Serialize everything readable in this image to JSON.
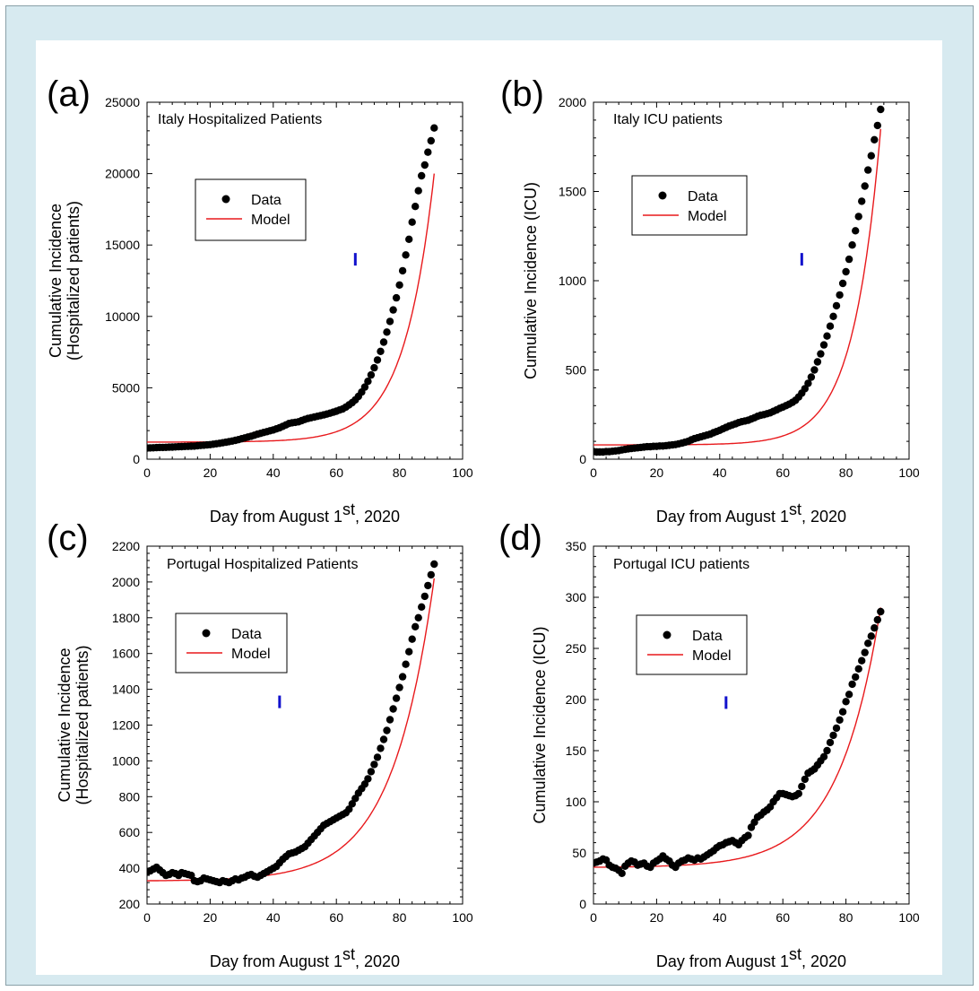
{
  "chart_data": [
    {
      "type": "scatter",
      "panel_label": "(a)",
      "title": "Italy Hospitalized Patients",
      "ylabel": [
        "Cumulative Incidence",
        "(Hospitalized patients)"
      ],
      "xlabel": {
        "text": "Day from August 1",
        "sup": "st",
        "after": ", 2020"
      },
      "xlim": [
        0,
        100
      ],
      "ylim": [
        0,
        25000
      ],
      "xticks": [
        0,
        20,
        40,
        60,
        80,
        100
      ],
      "yticks": [
        0,
        5000,
        10000,
        15000,
        20000,
        25000
      ],
      "legend": {
        "placement": "upper-left",
        "entries": [
          "Data",
          "Model"
        ]
      },
      "marker": {
        "x": 66,
        "y": 14000
      },
      "colors": {
        "data": "#000000",
        "model": "#e8191c",
        "marker": "#1111cc"
      },
      "series": [
        {
          "name": "Data",
          "kind": "points",
          "x": [
            0,
            1,
            2,
            3,
            4,
            5,
            6,
            7,
            8,
            9,
            10,
            11,
            12,
            13,
            14,
            15,
            16,
            17,
            18,
            19,
            20,
            21,
            22,
            23,
            24,
            25,
            26,
            27,
            28,
            29,
            30,
            31,
            32,
            33,
            34,
            35,
            36,
            37,
            38,
            39,
            40,
            41,
            42,
            43,
            44,
            45,
            46,
            47,
            48,
            49,
            50,
            51,
            52,
            53,
            54,
            55,
            56,
            57,
            58,
            59,
            60,
            61,
            62,
            63,
            64,
            65,
            66,
            67,
            68,
            69,
            70,
            71,
            72,
            73,
            74,
            75,
            76,
            77,
            78,
            79,
            80,
            81,
            82,
            83,
            84,
            85,
            86,
            87,
            88,
            89,
            90,
            91
          ],
          "y": [
            780,
            790,
            800,
            810,
            820,
            820,
            830,
            840,
            850,
            860,
            870,
            880,
            890,
            900,
            910,
            920,
            940,
            960,
            980,
            1000,
            1020,
            1050,
            1080,
            1110,
            1150,
            1190,
            1230,
            1270,
            1320,
            1370,
            1430,
            1490,
            1550,
            1610,
            1680,
            1750,
            1810,
            1870,
            1930,
            1990,
            2050,
            2120,
            2200,
            2300,
            2400,
            2500,
            2550,
            2580,
            2620,
            2700,
            2780,
            2850,
            2900,
            2950,
            3000,
            3050,
            3100,
            3160,
            3220,
            3290,
            3360,
            3440,
            3520,
            3650,
            3800,
            3960,
            4150,
            4400,
            4700,
            5050,
            5450,
            5900,
            6400,
            6950,
            7550,
            8200,
            8900,
            9650,
            10450,
            11300,
            12200,
            13200,
            14300,
            15400,
            16600,
            17700,
            18800,
            19850,
            20600,
            21500,
            22300,
            23200
          ]
        },
        {
          "name": "Model",
          "kind": "line",
          "x0": 0,
          "x1": 91,
          "y0": 1200,
          "y1": 20000,
          "curvature": 0.105
        }
      ]
    },
    {
      "type": "scatter",
      "panel_label": "(b)",
      "title": "Italy ICU patients",
      "ylabel": [
        "Cumulative  Incidence (ICU)"
      ],
      "xlabel": {
        "text": "Day from August 1",
        "sup": "st",
        "after": ", 2020"
      },
      "xlim": [
        0,
        100
      ],
      "ylim": [
        0,
        2000
      ],
      "xticks": [
        0,
        20,
        40,
        60,
        80,
        100
      ],
      "yticks": [
        0,
        500,
        1000,
        1500,
        2000
      ],
      "legend": {
        "placement": "upper-left",
        "entries": [
          "Data",
          "Model"
        ]
      },
      "marker": {
        "x": 66,
        "y": 1120
      },
      "colors": {
        "data": "#000000",
        "model": "#e8191c",
        "marker": "#1111cc"
      },
      "series": [
        {
          "name": "Data",
          "kind": "points",
          "x": [
            0,
            1,
            2,
            3,
            4,
            5,
            6,
            7,
            8,
            9,
            10,
            11,
            12,
            13,
            14,
            15,
            16,
            17,
            18,
            19,
            20,
            21,
            22,
            23,
            24,
            25,
            26,
            27,
            28,
            29,
            30,
            31,
            32,
            33,
            34,
            35,
            36,
            37,
            38,
            39,
            40,
            41,
            42,
            43,
            44,
            45,
            46,
            47,
            48,
            49,
            50,
            51,
            52,
            53,
            54,
            55,
            56,
            57,
            58,
            59,
            60,
            61,
            62,
            63,
            64,
            65,
            66,
            67,
            68,
            69,
            70,
            71,
            72,
            73,
            74,
            75,
            76,
            77,
            78,
            79,
            80,
            81,
            82,
            83,
            84,
            85,
            86,
            87,
            88,
            89,
            90,
            91
          ],
          "y": [
            42,
            40,
            40,
            40,
            42,
            42,
            44,
            46,
            48,
            52,
            55,
            58,
            60,
            62,
            64,
            66,
            68,
            70,
            70,
            72,
            72,
            74,
            74,
            76,
            78,
            80,
            82,
            86,
            90,
            95,
            100,
            108,
            115,
            120,
            125,
            130,
            135,
            140,
            148,
            155,
            162,
            170,
            178,
            186,
            192,
            198,
            205,
            210,
            214,
            218,
            225,
            232,
            240,
            246,
            250,
            255,
            260,
            268,
            276,
            285,
            292,
            300,
            308,
            318,
            330,
            348,
            370,
            395,
            425,
            460,
            500,
            545,
            590,
            640,
            690,
            745,
            800,
            860,
            920,
            985,
            1050,
            1120,
            1200,
            1280,
            1360,
            1445,
            1530,
            1620,
            1700,
            1790,
            1870,
            1960
          ]
        },
        {
          "name": "Model",
          "kind": "line",
          "x0": 0,
          "x1": 91,
          "y0": 80,
          "y1": 1850,
          "curvature": 0.115
        }
      ]
    },
    {
      "type": "scatter",
      "panel_label": "(c)",
      "title": "Portugal Hospitalized Patients",
      "ylabel": [
        "Cumulative Incidence",
        "(Hospitalized patients)"
      ],
      "xlabel": {
        "text": "Day from August 1",
        "sup": "st",
        "after": ", 2020"
      },
      "xlim": [
        0,
        100
      ],
      "ylim": [
        200,
        2200
      ],
      "xticks": [
        0,
        20,
        40,
        60,
        80,
        100
      ],
      "yticks": [
        200,
        400,
        600,
        800,
        1000,
        1200,
        1400,
        1600,
        1800,
        2000,
        2200
      ],
      "legend": {
        "placement": "upper-left",
        "entries": [
          "Data",
          "Model"
        ]
      },
      "marker": {
        "x": 42,
        "y": 1330
      },
      "colors": {
        "data": "#000000",
        "model": "#e8191c",
        "marker": "#1111cc"
      },
      "series": [
        {
          "name": "Data",
          "kind": "points",
          "x": [
            0,
            1,
            2,
            3,
            4,
            5,
            6,
            7,
            8,
            9,
            10,
            11,
            12,
            13,
            14,
            15,
            16,
            17,
            18,
            19,
            20,
            21,
            22,
            23,
            24,
            25,
            26,
            27,
            28,
            29,
            30,
            31,
            32,
            33,
            34,
            35,
            36,
            37,
            38,
            39,
            40,
            41,
            42,
            43,
            44,
            45,
            46,
            47,
            48,
            49,
            50,
            51,
            52,
            53,
            54,
            55,
            56,
            57,
            58,
            59,
            60,
            61,
            62,
            63,
            64,
            65,
            66,
            67,
            68,
            69,
            70,
            71,
            72,
            73,
            74,
            75,
            76,
            77,
            78,
            79,
            80,
            81,
            82,
            83,
            84,
            85,
            86,
            87,
            88,
            89,
            90,
            91
          ],
          "y": [
            380,
            385,
            395,
            405,
            390,
            375,
            360,
            365,
            375,
            370,
            360,
            375,
            370,
            365,
            360,
            330,
            325,
            330,
            345,
            340,
            335,
            330,
            325,
            320,
            330,
            325,
            320,
            330,
            340,
            335,
            345,
            350,
            360,
            365,
            355,
            350,
            360,
            370,
            380,
            390,
            400,
            410,
            430,
            450,
            465,
            480,
            485,
            490,
            500,
            510,
            520,
            540,
            560,
            580,
            600,
            620,
            640,
            650,
            660,
            670,
            680,
            690,
            700,
            710,
            730,
            760,
            790,
            820,
            845,
            870,
            900,
            940,
            980,
            1020,
            1070,
            1120,
            1170,
            1230,
            1290,
            1350,
            1410,
            1470,
            1540,
            1610,
            1680,
            1750,
            1800,
            1860,
            1920,
            1980,
            2040,
            2100
          ]
        },
        {
          "name": "Model",
          "kind": "line",
          "x0": 0,
          "x1": 91,
          "y0": 330,
          "y1": 2020,
          "curvature": 0.075
        }
      ]
    },
    {
      "type": "scatter",
      "panel_label": "(d)",
      "title": "Portugal ICU patients",
      "ylabel": [
        "Cumulative  Incidence (ICU)"
      ],
      "xlabel": {
        "text": "Day from August 1",
        "sup": "st",
        "after": ", 2020"
      },
      "xlim": [
        0,
        100
      ],
      "ylim": [
        0,
        350
      ],
      "xticks": [
        0,
        20,
        40,
        60,
        80,
        100
      ],
      "yticks": [
        0,
        50,
        100,
        150,
        200,
        250,
        300,
        350
      ],
      "legend": {
        "placement": "upper-left",
        "entries": [
          "Data",
          "Model"
        ]
      },
      "marker": {
        "x": 42,
        "y": 197
      },
      "colors": {
        "data": "#000000",
        "model": "#e8191c",
        "marker": "#1111cc"
      },
      "series": [
        {
          "name": "Data",
          "kind": "points",
          "x": [
            0,
            1,
            2,
            3,
            4,
            5,
            6,
            7,
            8,
            9,
            10,
            11,
            12,
            13,
            14,
            15,
            16,
            17,
            18,
            19,
            20,
            21,
            22,
            23,
            24,
            25,
            26,
            27,
            28,
            29,
            30,
            31,
            32,
            33,
            34,
            35,
            36,
            37,
            38,
            39,
            40,
            41,
            42,
            43,
            44,
            45,
            46,
            47,
            48,
            49,
            50,
            51,
            52,
            53,
            54,
            55,
            56,
            57,
            58,
            59,
            60,
            61,
            62,
            63,
            64,
            65,
            66,
            67,
            68,
            69,
            70,
            71,
            72,
            73,
            74,
            75,
            76,
            77,
            78,
            79,
            80,
            81,
            82,
            83,
            84,
            85,
            86,
            87,
            88,
            89,
            90,
            91
          ],
          "y": [
            40,
            41,
            42,
            44,
            43,
            38,
            36,
            35,
            33,
            30,
            37,
            40,
            42,
            41,
            38,
            39,
            40,
            37,
            36,
            40,
            42,
            44,
            47,
            44,
            42,
            38,
            36,
            40,
            42,
            43,
            45,
            44,
            43,
            45,
            44,
            46,
            48,
            50,
            52,
            55,
            57,
            58,
            60,
            61,
            62,
            60,
            58,
            62,
            65,
            67,
            75,
            80,
            85,
            87,
            90,
            92,
            95,
            100,
            104,
            108,
            108,
            107,
            106,
            105,
            106,
            108,
            115,
            122,
            128,
            130,
            132,
            136,
            140,
            144,
            150,
            158,
            165,
            172,
            180,
            188,
            198,
            205,
            215,
            222,
            230,
            238,
            246,
            255,
            262,
            270,
            278,
            286
          ]
        },
        {
          "name": "Model",
          "kind": "line",
          "x0": 0,
          "x1": 91,
          "y0": 36,
          "y1": 290,
          "curvature": 0.075
        }
      ]
    }
  ]
}
